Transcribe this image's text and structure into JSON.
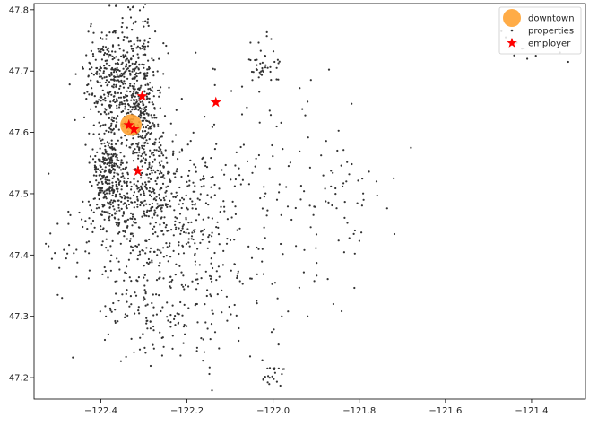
{
  "chart_data": {
    "type": "scatter",
    "title": "",
    "xlabel": "",
    "ylabel": "",
    "xlim": [
      -122.555,
      -121.275
    ],
    "ylim": [
      47.165,
      47.81
    ],
    "xticks": [
      -122.4,
      -122.2,
      -122.0,
      -121.8,
      -121.6,
      -121.4
    ],
    "xtick_labels": [
      "−122.4",
      "−122.2",
      "−122.0",
      "−121.8",
      "−121.6",
      "−121.4"
    ],
    "yticks": [
      47.2,
      47.3,
      47.4,
      47.5,
      47.6,
      47.7,
      47.8
    ],
    "ytick_labels": [
      "47.2",
      "47.3",
      "47.4",
      "47.5",
      "47.6",
      "47.7",
      "47.8"
    ],
    "grid": false,
    "legend_position": "top-right",
    "series": [
      {
        "name": "downtown",
        "marker": "circle",
        "color": "#ffa333",
        "points": [
          [
            -122.33,
            47.612
          ]
        ]
      },
      {
        "name": "properties",
        "marker": "dot",
        "color": "#333333",
        "point_count": 2000,
        "clusters": [
          {
            "cx": -122.365,
            "cy": 47.685,
            "sx": 0.035,
            "sy": 0.045,
            "weight": 0.17
          },
          {
            "cx": -122.31,
            "cy": 47.71,
            "sx": 0.025,
            "sy": 0.05,
            "weight": 0.07
          },
          {
            "cx": -122.315,
            "cy": 47.62,
            "sx": 0.015,
            "sy": 0.03,
            "weight": 0.06
          },
          {
            "cx": -122.38,
            "cy": 47.535,
            "sx": 0.02,
            "sy": 0.04,
            "weight": 0.14
          },
          {
            "cx": -122.28,
            "cy": 47.55,
            "sx": 0.025,
            "sy": 0.04,
            "weight": 0.08
          },
          {
            "cx": -122.33,
            "cy": 47.48,
            "sx": 0.04,
            "sy": 0.04,
            "weight": 0.07
          },
          {
            "cx": -122.2,
            "cy": 47.48,
            "sx": 0.05,
            "sy": 0.05,
            "weight": 0.08
          },
          {
            "cx": -122.32,
            "cy": 47.38,
            "sx": 0.04,
            "sy": 0.06,
            "weight": 0.05
          },
          {
            "cx": -122.2,
            "cy": 47.38,
            "sx": 0.06,
            "sy": 0.06,
            "weight": 0.05
          },
          {
            "cx": -122.05,
            "cy": 47.55,
            "sx": 0.12,
            "sy": 0.1,
            "weight": 0.05
          },
          {
            "cx": -122.25,
            "cy": 47.28,
            "sx": 0.1,
            "sy": 0.04,
            "weight": 0.03
          },
          {
            "cx": -122.02,
            "cy": 47.71,
            "sx": 0.02,
            "sy": 0.02,
            "weight": 0.02
          },
          {
            "cx": -122.45,
            "cy": 47.42,
            "sx": 0.04,
            "sy": 0.05,
            "weight": 0.02
          },
          {
            "cx": -121.85,
            "cy": 47.5,
            "sx": 0.06,
            "sy": 0.04,
            "weight": 0.02
          },
          {
            "cx": -122.0,
            "cy": 47.21,
            "sx": 0.015,
            "sy": 0.015,
            "weight": 0.01
          },
          {
            "cx": -122.1,
            "cy": 47.35,
            "sx": 0.1,
            "sy": 0.06,
            "weight": 0.03
          },
          {
            "cx": -121.38,
            "cy": 47.73,
            "sx": 0.04,
            "sy": 0.02,
            "weight": 0.003
          }
        ],
        "fixed_points": [
          [
            -122.46,
            47.62
          ],
          [
            -121.92,
            47.65
          ],
          [
            -121.81,
            47.44
          ],
          [
            -121.68,
            47.575
          ],
          [
            -121.76,
            47.52
          ],
          [
            -121.72,
            47.525
          ],
          [
            -121.83,
            47.52
          ],
          [
            -121.79,
            47.49
          ],
          [
            -122.5,
            47.335
          ],
          [
            -122.49,
            47.33
          ],
          [
            -121.47,
            47.765
          ],
          [
            -121.46,
            47.755
          ],
          [
            -121.41,
            47.72
          ],
          [
            -121.315,
            47.715
          ],
          [
            -121.39,
            47.725
          ],
          [
            -122.18,
            47.73
          ],
          [
            -121.98,
            47.3
          ],
          [
            -121.92,
            47.3
          ],
          [
            -121.86,
            47.32
          ],
          [
            -122.08,
            47.26
          ]
        ]
      },
      {
        "name": "employer",
        "marker": "star",
        "color": "#ff0000",
        "points": [
          [
            -122.304,
            47.659
          ],
          [
            -122.133,
            47.649
          ],
          [
            -122.335,
            47.612
          ],
          [
            -122.323,
            47.605
          ],
          [
            -122.314,
            47.537
          ]
        ]
      }
    ]
  }
}
